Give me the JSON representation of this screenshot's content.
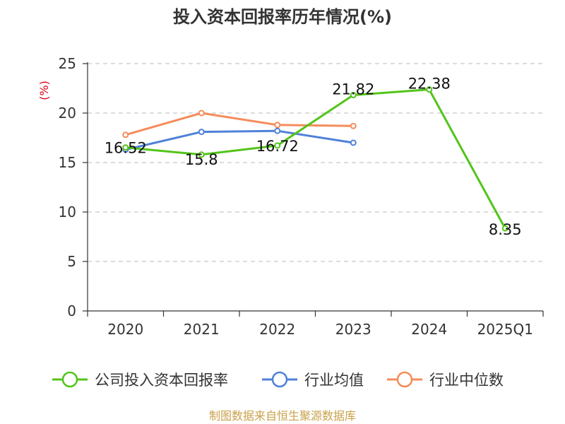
{
  "chart_data": {
    "type": "line",
    "title": "投入资本回报率历年情况(%)",
    "ylabel": "(%)",
    "categories": [
      "2020",
      "2021",
      "2022",
      "2023",
      "2024",
      "2025Q1"
    ],
    "ylim": [
      0,
      25
    ],
    "yticks": [
      0,
      5,
      10,
      15,
      20,
      25
    ],
    "grid": true,
    "legend_position": "bottom",
    "series": [
      {
        "name": "公司投入资本回报率",
        "color": "#52c41a",
        "values": [
          16.52,
          15.8,
          16.72,
          21.82,
          22.38,
          8.35
        ],
        "labels": [
          "16.52",
          "15.8",
          "16.72",
          "21.82",
          "22.38",
          "8.35"
        ]
      },
      {
        "name": "行业均值",
        "color": "#4f81d9",
        "values": [
          16.3,
          18.1,
          18.2,
          17.0,
          null,
          null
        ]
      },
      {
        "name": "行业中位数",
        "color": "#f58c5b",
        "values": [
          17.8,
          20.0,
          18.8,
          18.7,
          null,
          null
        ]
      }
    ],
    "source": "制图数据来自恒生聚源数据库"
  }
}
